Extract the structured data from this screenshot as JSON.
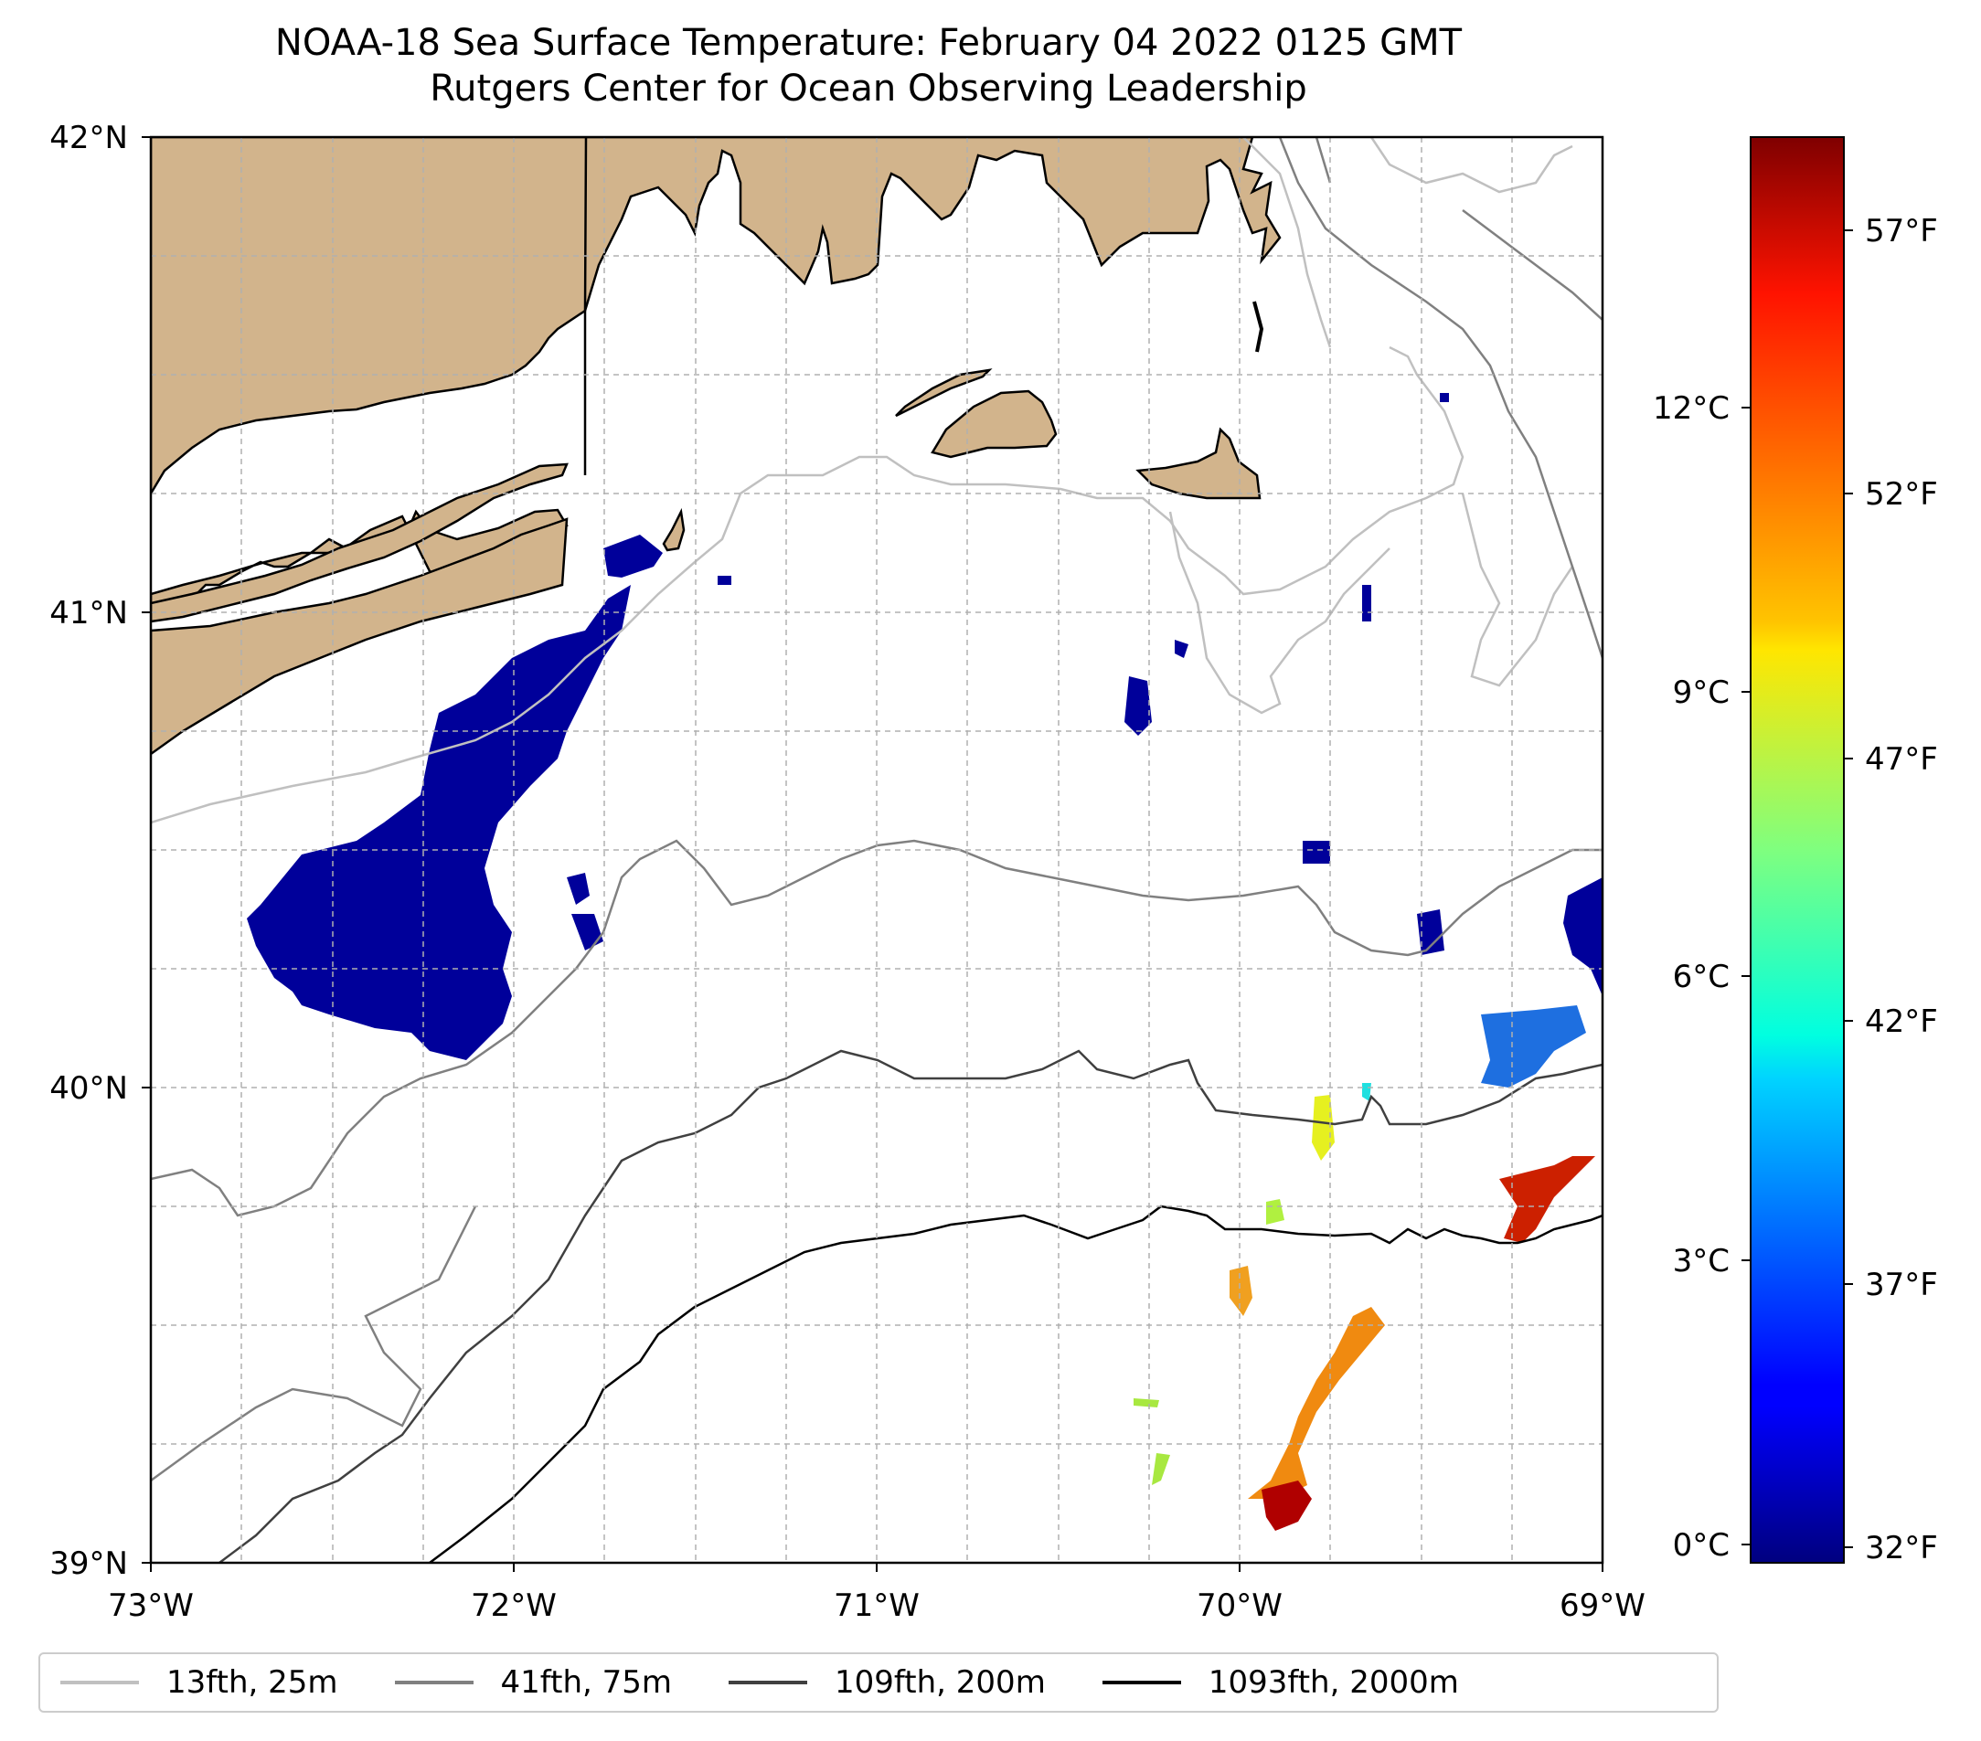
{
  "title": {
    "line1": "NOAA-18 Sea Surface Temperature: February 04 2022 0125 GMT",
    "line2": "Rutgers Center for Ocean Observing Leadership"
  },
  "map": {
    "lon_range": [
      -73,
      -69
    ],
    "lat_range": [
      39,
      42
    ],
    "x_ticks": [
      "73°W",
      "72°W",
      "71°W",
      "70°W",
      "69°W"
    ],
    "y_ticks": [
      "42°N",
      "41°N",
      "40°N",
      "39°N"
    ],
    "grid": true,
    "land_color": "#d2b48c"
  },
  "colorbar": {
    "colormap": "jet",
    "celsius_ticks": [
      "0°C",
      "3°C",
      "6°C",
      "9°C",
      "12°C"
    ],
    "fahrenheit_ticks": [
      "32°F",
      "37°F",
      "42°F",
      "47°F",
      "52°F",
      "57°F"
    ]
  },
  "legend": {
    "items": [
      {
        "label": "13fth, 25m",
        "color": "#c0c0c0"
      },
      {
        "label": "41fth, 75m",
        "color": "#808080"
      },
      {
        "label": "109fth, 200m",
        "color": "#404040"
      },
      {
        "label": "1093fth, 2000m",
        "color": "#000000"
      }
    ]
  }
}
